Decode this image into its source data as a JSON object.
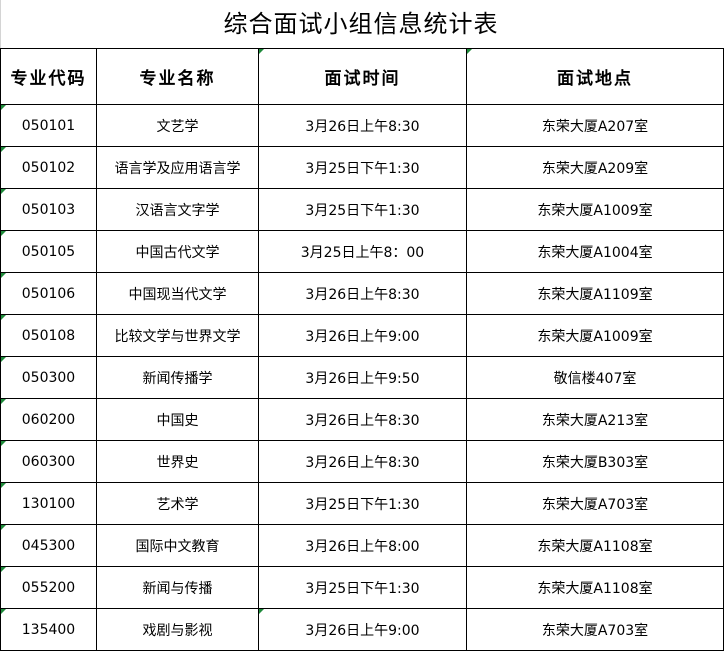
{
  "title": "综合面试小组信息统计表",
  "columns": [
    "专业代码",
    "专业名称",
    "面试时间",
    "面试地点"
  ],
  "rows": [
    [
      "050101",
      "文艺学",
      "3月26日上午8:30",
      "东荣大厦A207室"
    ],
    [
      "050102",
      "语言学及应用语言学",
      "3月25日下午1:30",
      "东荣大厦A209室"
    ],
    [
      "050103",
      "汉语言文字学",
      "3月25日下午1:30",
      "东荣大厦A1009室"
    ],
    [
      "050105",
      "中国古代文学",
      "3月25日上午8：00",
      "东荣大厦A1004室"
    ],
    [
      "050106",
      "中国现当代文学",
      "3月26日上午8:30",
      "东荣大厦A1109室"
    ],
    [
      "050108",
      "比较文学与世界文学",
      "3月26日上午9:00",
      "东荣大厦A1009室"
    ],
    [
      "050300",
      "新闻传播学",
      "3月26日上午9:50",
      "敬信楼407室"
    ],
    [
      "060200",
      "中国史",
      "3月26日上午8:30",
      "东荣大厦A213室"
    ],
    [
      "060300",
      "世界史",
      "3月26日上午8:30",
      "东荣大厦B303室"
    ],
    [
      "130100",
      "艺术学",
      "3月25日下午1:30",
      "东荣大厦A703室"
    ],
    [
      "045300",
      "国际中文教育",
      "3月26日上午8:00",
      "东荣大厦A1108室"
    ],
    [
      "055200",
      "新闻与传播",
      "3月25日下午1:30",
      "东荣大厦A1108室"
    ],
    [
      "135400",
      "戏剧与影视",
      "3月26日上午9:00",
      "东荣大厦A703室"
    ]
  ]
}
